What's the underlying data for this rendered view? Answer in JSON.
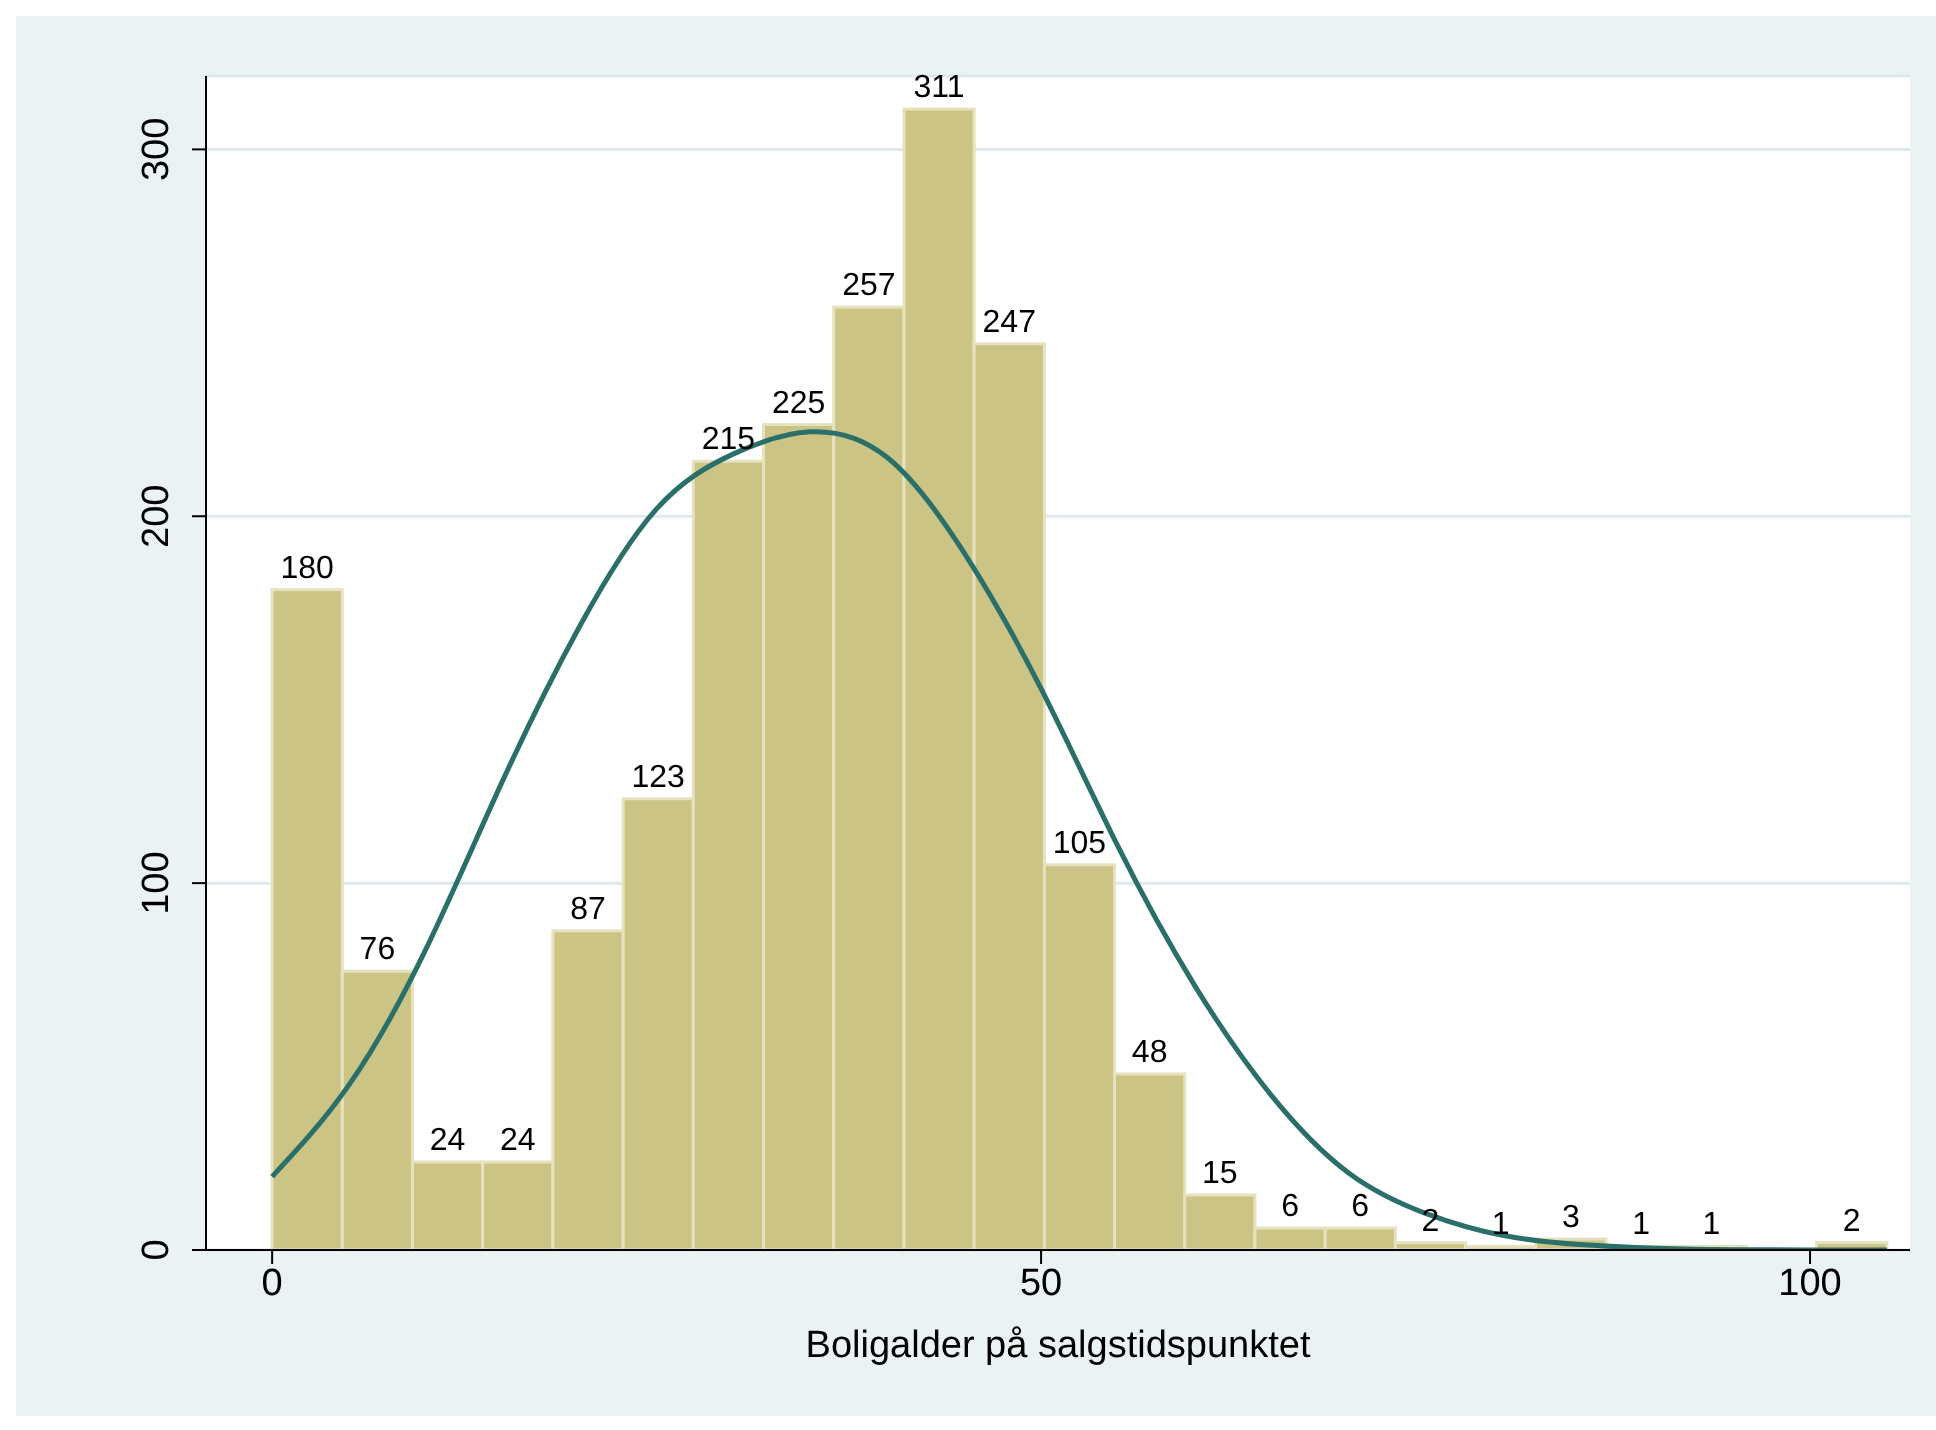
{
  "chart_data": {
    "type": "histogram",
    "xlabel": "Boligalder på salgstidspunktet",
    "bins": [
      0,
      4.57,
      9.13,
      13.7,
      18.26,
      22.83,
      27.39,
      31.96,
      36.52,
      41.09,
      45.65,
      50.22,
      54.78,
      59.35,
      63.91,
      68.48,
      73.04,
      77.61,
      82.17,
      86.74,
      91.3,
      95.87,
      100.43,
      105
    ],
    "xlim": [
      -4.3,
      106.5
    ],
    "xticks": [
      0,
      50,
      100
    ],
    "ylim": [
      0,
      320
    ],
    "yticks": [
      0,
      100,
      200,
      300
    ],
    "grid": "y",
    "series": [
      {
        "type": "histogram",
        "color": "#cbc484",
        "values": [
          180,
          76,
          24,
          24,
          87,
          123,
          215,
          225,
          257,
          311,
          247,
          105,
          48,
          15,
          6,
          6,
          2,
          1,
          3,
          1,
          1,
          0,
          2
        ],
        "value_labels": [
          "180",
          "76",
          "24",
          "24",
          "87",
          "123",
          "215",
          "225",
          "257",
          "311",
          "247",
          "105",
          "48",
          "15",
          "6",
          "6",
          "2",
          "1",
          "3",
          "1",
          "1",
          null,
          "2"
        ]
      },
      {
        "type": "line",
        "color": "#2a6f6a",
        "x": [
          0,
          5,
          10,
          15,
          20,
          25,
          30,
          35,
          40,
          45,
          50,
          55,
          60,
          65,
          70,
          75,
          80,
          85,
          90,
          95,
          100,
          105
        ],
        "values": [
          20,
          45,
          82,
          128,
          170,
          202,
          217,
          223,
          216,
          190,
          153,
          110,
          72,
          42,
          21,
          10,
          4,
          1.5,
          0.5,
          0.1,
          0,
          0
        ]
      }
    ]
  }
}
